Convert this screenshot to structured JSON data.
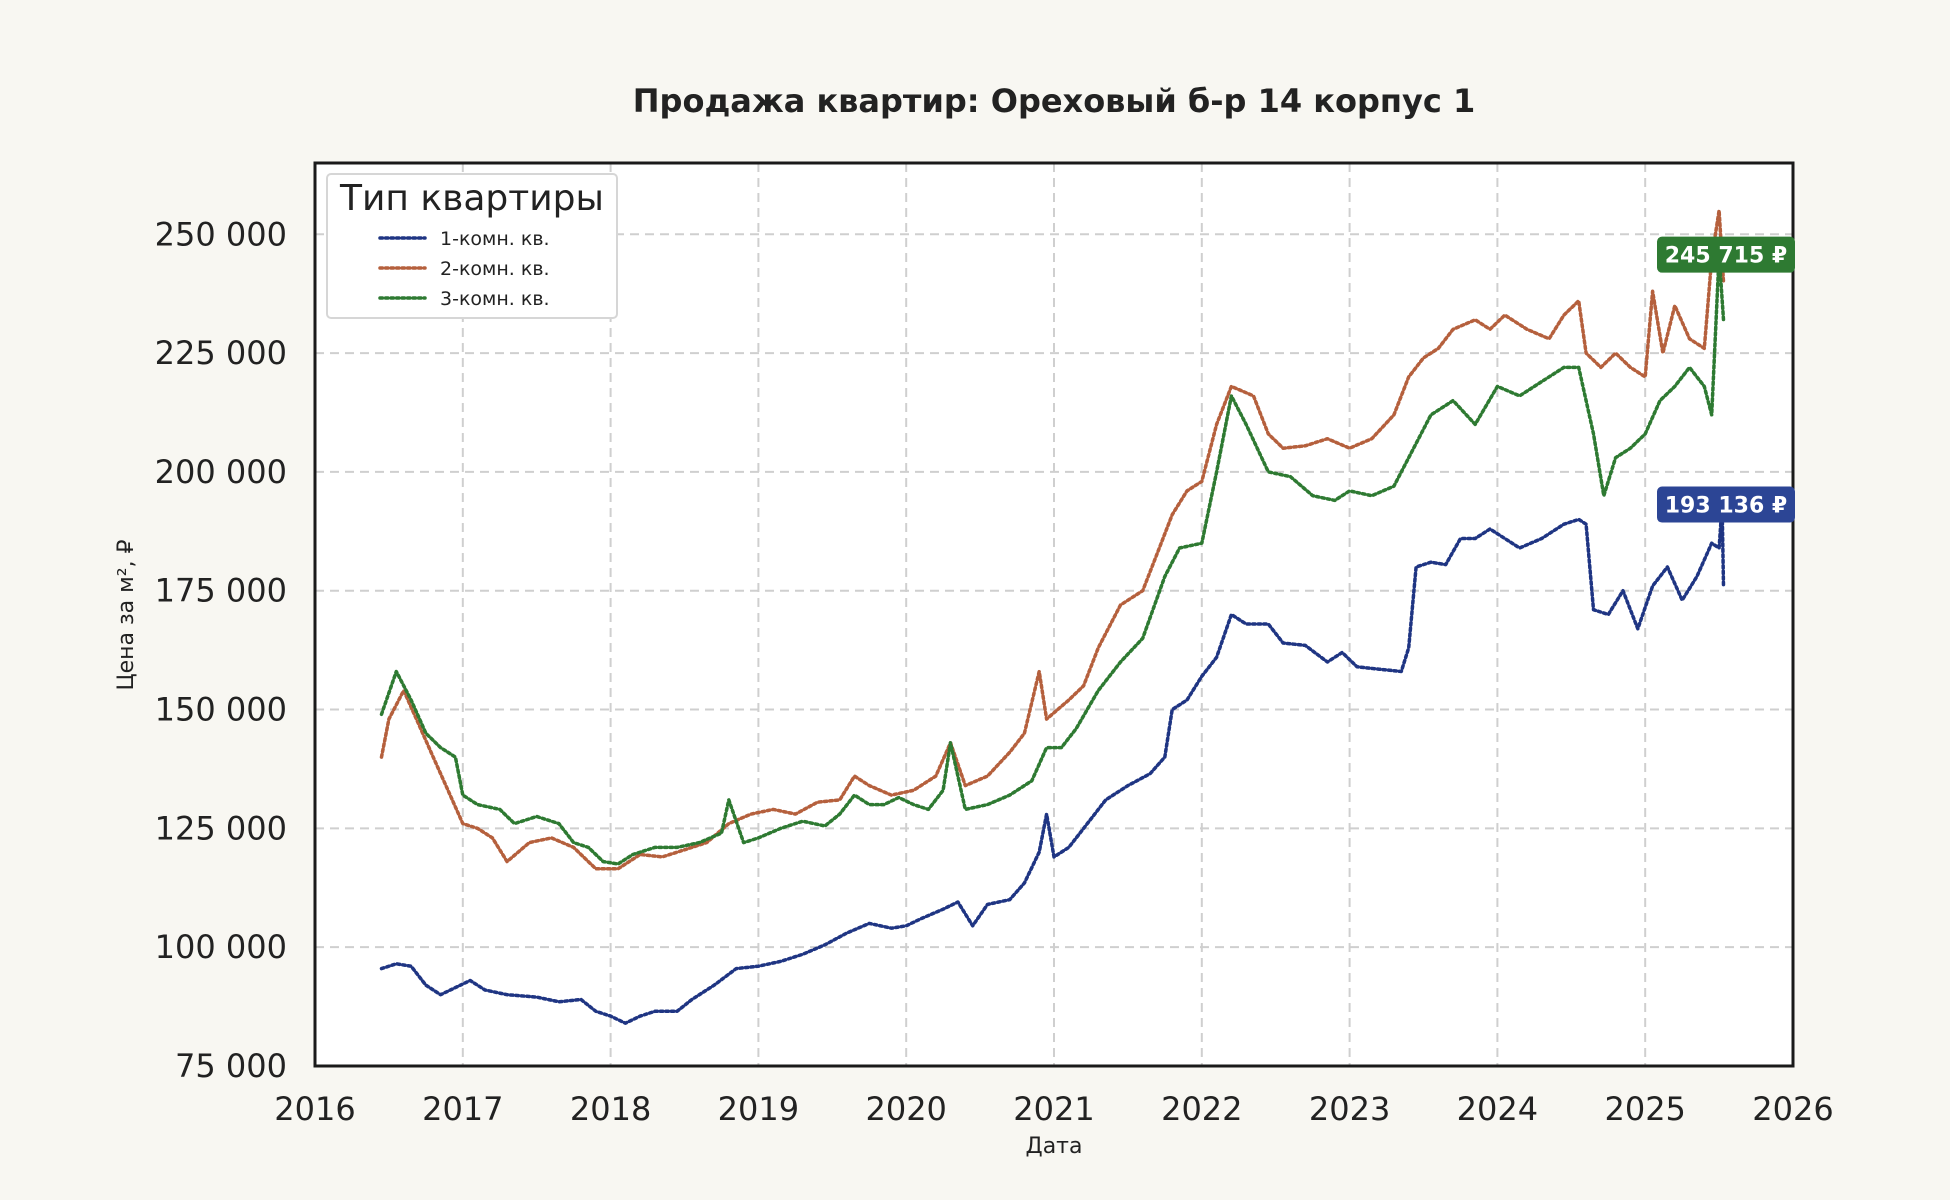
{
  "chart_data": {
    "type": "line",
    "title": "Продажа квартир: Ореховый б-р 14 корпус 1",
    "xlabel": "Дата",
    "ylabel": "Цена за м², ₽",
    "xlim": [
      2016,
      2026
    ],
    "ylim": [
      75000,
      265000
    ],
    "x_ticks": [
      "2016",
      "2017",
      "2018",
      "2019",
      "2020",
      "2021",
      "2022",
      "2023",
      "2024",
      "2025",
      "2026"
    ],
    "y_ticks": [
      "75 000",
      "100 000",
      "125 000",
      "150 000",
      "175 000",
      "200 000",
      "225 000",
      "250 000"
    ],
    "y_tick_values": [
      75000,
      100000,
      125000,
      150000,
      175000,
      200000,
      225000,
      250000
    ],
    "x_tick_values": [
      2016,
      2017,
      2018,
      2019,
      2020,
      2021,
      2022,
      2023,
      2024,
      2025,
      2026
    ],
    "grid": true,
    "legend": {
      "title": "Тип квартиры",
      "position": "top-left"
    },
    "series": [
      {
        "name": "1-комн. кв.",
        "color": "#1f3583",
        "badge_color": "#2c4595",
        "last_label": "193 136 ₽",
        "last_value": 193136,
        "points": [
          [
            2016.45,
            95500
          ],
          [
            2016.55,
            96500
          ],
          [
            2016.65,
            96000
          ],
          [
            2016.75,
            92000
          ],
          [
            2016.85,
            90000
          ],
          [
            2016.95,
            91500
          ],
          [
            2017.05,
            93000
          ],
          [
            2017.15,
            91000
          ],
          [
            2017.3,
            90000
          ],
          [
            2017.5,
            89500
          ],
          [
            2017.65,
            88500
          ],
          [
            2017.8,
            89000
          ],
          [
            2017.9,
            86500
          ],
          [
            2018.0,
            85500
          ],
          [
            2018.1,
            84000
          ],
          [
            2018.2,
            85500
          ],
          [
            2018.3,
            86500
          ],
          [
            2018.45,
            86500
          ],
          [
            2018.55,
            89000
          ],
          [
            2018.7,
            92000
          ],
          [
            2018.85,
            95500
          ],
          [
            2019.0,
            96000
          ],
          [
            2019.15,
            97000
          ],
          [
            2019.3,
            98500
          ],
          [
            2019.45,
            100500
          ],
          [
            2019.6,
            103000
          ],
          [
            2019.75,
            105000
          ],
          [
            2019.9,
            104000
          ],
          [
            2020.0,
            104500
          ],
          [
            2020.1,
            106000
          ],
          [
            2020.25,
            108000
          ],
          [
            2020.35,
            109500
          ],
          [
            2020.45,
            104500
          ],
          [
            2020.55,
            109000
          ],
          [
            2020.7,
            110000
          ],
          [
            2020.8,
            113500
          ],
          [
            2020.9,
            120000
          ],
          [
            2020.95,
            128000
          ],
          [
            2021.0,
            119000
          ],
          [
            2021.1,
            121000
          ],
          [
            2021.2,
            125000
          ],
          [
            2021.35,
            131000
          ],
          [
            2021.5,
            134000
          ],
          [
            2021.65,
            136500
          ],
          [
            2021.75,
            140000
          ],
          [
            2021.8,
            150000
          ],
          [
            2021.9,
            152000
          ],
          [
            2022.0,
            157000
          ],
          [
            2022.1,
            161000
          ],
          [
            2022.2,
            170000
          ],
          [
            2022.3,
            168000
          ],
          [
            2022.45,
            168000
          ],
          [
            2022.55,
            164000
          ],
          [
            2022.7,
            163500
          ],
          [
            2022.85,
            160000
          ],
          [
            2022.95,
            162000
          ],
          [
            2023.05,
            159000
          ],
          [
            2023.2,
            158500
          ],
          [
            2023.35,
            158000
          ],
          [
            2023.4,
            163000
          ],
          [
            2023.45,
            180000
          ],
          [
            2023.55,
            181000
          ],
          [
            2023.65,
            180500
          ],
          [
            2023.75,
            186000
          ],
          [
            2023.85,
            186000
          ],
          [
            2023.95,
            188000
          ],
          [
            2024.05,
            186000
          ],
          [
            2024.15,
            184000
          ],
          [
            2024.3,
            186000
          ],
          [
            2024.45,
            189000
          ],
          [
            2024.55,
            190000
          ],
          [
            2024.6,
            189000
          ],
          [
            2024.65,
            171000
          ],
          [
            2024.75,
            170000
          ],
          [
            2024.85,
            175000
          ],
          [
            2024.95,
            167000
          ],
          [
            2025.05,
            176000
          ],
          [
            2025.15,
            180000
          ],
          [
            2025.25,
            173000
          ],
          [
            2025.35,
            178000
          ],
          [
            2025.45,
            185000
          ],
          [
            2025.5,
            184000
          ],
          [
            2025.52,
            193136
          ],
          [
            2025.53,
            176000
          ]
        ]
      },
      {
        "name": "2-комн. кв.",
        "color": "#b5603d",
        "badge_color": "#b5603d",
        "last_label": "",
        "last_value": null,
        "points": [
          [
            2016.45,
            140000
          ],
          [
            2016.5,
            148000
          ],
          [
            2016.6,
            154000
          ],
          [
            2016.7,
            147000
          ],
          [
            2016.8,
            140000
          ],
          [
            2016.9,
            133000
          ],
          [
            2017.0,
            126000
          ],
          [
            2017.1,
            125000
          ],
          [
            2017.2,
            123000
          ],
          [
            2017.3,
            118000
          ],
          [
            2017.45,
            122000
          ],
          [
            2017.6,
            123000
          ],
          [
            2017.75,
            121000
          ],
          [
            2017.9,
            116500
          ],
          [
            2018.05,
            116500
          ],
          [
            2018.2,
            119500
          ],
          [
            2018.35,
            119000
          ],
          [
            2018.5,
            120500
          ],
          [
            2018.65,
            122000
          ],
          [
            2018.8,
            126000
          ],
          [
            2018.95,
            128000
          ],
          [
            2019.1,
            129000
          ],
          [
            2019.25,
            128000
          ],
          [
            2019.4,
            130500
          ],
          [
            2019.55,
            131000
          ],
          [
            2019.65,
            136000
          ],
          [
            2019.75,
            134000
          ],
          [
            2019.9,
            132000
          ],
          [
            2020.05,
            133000
          ],
          [
            2020.2,
            136000
          ],
          [
            2020.3,
            143000
          ],
          [
            2020.4,
            134000
          ],
          [
            2020.55,
            136000
          ],
          [
            2020.7,
            141000
          ],
          [
            2020.8,
            145000
          ],
          [
            2020.9,
            158000
          ],
          [
            2020.95,
            148000
          ],
          [
            2021.1,
            152000
          ],
          [
            2021.2,
            155000
          ],
          [
            2021.3,
            163000
          ],
          [
            2021.45,
            172000
          ],
          [
            2021.6,
            175000
          ],
          [
            2021.7,
            183000
          ],
          [
            2021.8,
            191000
          ],
          [
            2021.9,
            196000
          ],
          [
            2022.0,
            198000
          ],
          [
            2022.1,
            210000
          ],
          [
            2022.2,
            218000
          ],
          [
            2022.35,
            216000
          ],
          [
            2022.45,
            208000
          ],
          [
            2022.55,
            205000
          ],
          [
            2022.7,
            205500
          ],
          [
            2022.85,
            207000
          ],
          [
            2023.0,
            205000
          ],
          [
            2023.15,
            207000
          ],
          [
            2023.3,
            212000
          ],
          [
            2023.4,
            220000
          ],
          [
            2023.5,
            224000
          ],
          [
            2023.6,
            226000
          ],
          [
            2023.7,
            230000
          ],
          [
            2023.85,
            232000
          ],
          [
            2023.95,
            230000
          ],
          [
            2024.05,
            233000
          ],
          [
            2024.2,
            230000
          ],
          [
            2024.35,
            228000
          ],
          [
            2024.45,
            233000
          ],
          [
            2024.55,
            236000
          ],
          [
            2024.6,
            225000
          ],
          [
            2024.7,
            222000
          ],
          [
            2024.8,
            225000
          ],
          [
            2024.9,
            222000
          ],
          [
            2025.0,
            220000
          ],
          [
            2025.05,
            238000
          ],
          [
            2025.12,
            225000
          ],
          [
            2025.2,
            235000
          ],
          [
            2025.3,
            228000
          ],
          [
            2025.4,
            226000
          ],
          [
            2025.45,
            245000
          ],
          [
            2025.5,
            255000
          ],
          [
            2025.53,
            240000
          ]
        ]
      },
      {
        "name": "3-комн. кв.",
        "color": "#2e7a32",
        "badge_color": "#2e7a32",
        "last_label": "245 715 ₽",
        "last_value": 245715,
        "points": [
          [
            2016.45,
            149000
          ],
          [
            2016.55,
            158000
          ],
          [
            2016.65,
            152000
          ],
          [
            2016.75,
            145000
          ],
          [
            2016.85,
            142000
          ],
          [
            2016.95,
            140000
          ],
          [
            2017.0,
            132000
          ],
          [
            2017.1,
            130000
          ],
          [
            2017.25,
            129000
          ],
          [
            2017.35,
            126000
          ],
          [
            2017.5,
            127500
          ],
          [
            2017.65,
            126000
          ],
          [
            2017.75,
            122000
          ],
          [
            2017.85,
            121000
          ],
          [
            2017.95,
            118000
          ],
          [
            2018.05,
            117500
          ],
          [
            2018.15,
            119500
          ],
          [
            2018.3,
            121000
          ],
          [
            2018.45,
            121000
          ],
          [
            2018.6,
            122000
          ],
          [
            2018.75,
            124000
          ],
          [
            2018.8,
            131000
          ],
          [
            2018.9,
            122000
          ],
          [
            2019.0,
            123000
          ],
          [
            2019.15,
            125000
          ],
          [
            2019.3,
            126500
          ],
          [
            2019.45,
            125500
          ],
          [
            2019.55,
            128000
          ],
          [
            2019.65,
            132000
          ],
          [
            2019.75,
            130000
          ],
          [
            2019.85,
            130000
          ],
          [
            2019.95,
            131500
          ],
          [
            2020.05,
            130000
          ],
          [
            2020.15,
            129000
          ],
          [
            2020.25,
            133000
          ],
          [
            2020.3,
            143000
          ],
          [
            2020.4,
            129000
          ],
          [
            2020.55,
            130000
          ],
          [
            2020.7,
            132000
          ],
          [
            2020.85,
            135000
          ],
          [
            2020.95,
            142000
          ],
          [
            2021.05,
            142000
          ],
          [
            2021.15,
            146000
          ],
          [
            2021.3,
            154000
          ],
          [
            2021.45,
            160000
          ],
          [
            2021.6,
            165000
          ],
          [
            2021.75,
            178000
          ],
          [
            2021.85,
            184000
          ],
          [
            2022.0,
            185000
          ],
          [
            2022.1,
            200000
          ],
          [
            2022.2,
            216000
          ],
          [
            2022.3,
            210000
          ],
          [
            2022.45,
            200000
          ],
          [
            2022.6,
            199000
          ],
          [
            2022.75,
            195000
          ],
          [
            2022.9,
            194000
          ],
          [
            2023.0,
            196000
          ],
          [
            2023.15,
            195000
          ],
          [
            2023.3,
            197000
          ],
          [
            2023.4,
            203000
          ],
          [
            2023.55,
            212000
          ],
          [
            2023.7,
            215000
          ],
          [
            2023.85,
            210000
          ],
          [
            2024.0,
            218000
          ],
          [
            2024.15,
            216000
          ],
          [
            2024.3,
            219000
          ],
          [
            2024.45,
            222000
          ],
          [
            2024.55,
            222000
          ],
          [
            2024.65,
            208000
          ],
          [
            2024.72,
            195000
          ],
          [
            2024.8,
            203000
          ],
          [
            2024.9,
            205000
          ],
          [
            2025.0,
            208000
          ],
          [
            2025.1,
            215000
          ],
          [
            2025.2,
            218000
          ],
          [
            2025.3,
            222000
          ],
          [
            2025.4,
            218000
          ],
          [
            2025.45,
            212000
          ],
          [
            2025.5,
            245715
          ],
          [
            2025.53,
            232000
          ]
        ]
      }
    ]
  }
}
